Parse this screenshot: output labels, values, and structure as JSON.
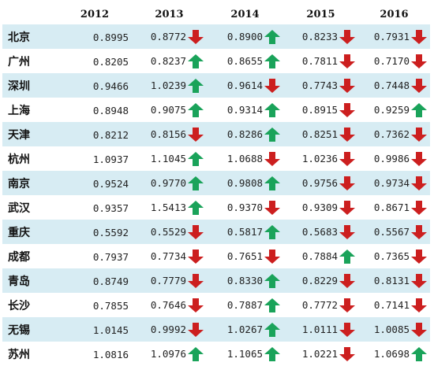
{
  "table": {
    "columns": [
      "",
      "2012",
      "2013",
      "2014",
      "2015",
      "2016"
    ],
    "rows": [
      {
        "city": "北京",
        "v": [
          "0.8995",
          "0.8772",
          "0.8900",
          "0.8233",
          "0.7931"
        ],
        "t": [
          null,
          "down",
          "up",
          "down",
          "down"
        ]
      },
      {
        "city": "广州",
        "v": [
          "0.8205",
          "0.8237",
          "0.8655",
          "0.7811",
          "0.7170"
        ],
        "t": [
          null,
          "up",
          "up",
          "down",
          "down"
        ]
      },
      {
        "city": "深圳",
        "v": [
          "0.9466",
          "1.0239",
          "0.9614",
          "0.7743",
          "0.7448"
        ],
        "t": [
          null,
          "up",
          "down",
          "down",
          "down"
        ]
      },
      {
        "city": "上海",
        "v": [
          "0.8948",
          "0.9075",
          "0.9314",
          "0.8915",
          "0.9259"
        ],
        "t": [
          null,
          "up",
          "up",
          "down",
          "up"
        ]
      },
      {
        "city": "天津",
        "v": [
          "0.8212",
          "0.8156",
          "0.8286",
          "0.8251",
          "0.7362"
        ],
        "t": [
          null,
          "down",
          "up",
          "down",
          "down"
        ]
      },
      {
        "city": "杭州",
        "v": [
          "1.0937",
          "1.1045",
          "1.0688",
          "1.0236",
          "0.9986"
        ],
        "t": [
          null,
          "up",
          "down",
          "down",
          "down"
        ]
      },
      {
        "city": "南京",
        "v": [
          "0.9524",
          "0.9770",
          "0.9808",
          "0.9756",
          "0.9734"
        ],
        "t": [
          null,
          "up",
          "up",
          "down",
          "down"
        ]
      },
      {
        "city": "武汉",
        "v": [
          "0.9357",
          "1.5413",
          "0.9370",
          "0.9309",
          "0.8671"
        ],
        "t": [
          null,
          "up",
          "down",
          "down",
          "down"
        ]
      },
      {
        "city": "重庆",
        "v": [
          "0.5592",
          "0.5529",
          "0.5817",
          "0.5683",
          "0.5567"
        ],
        "t": [
          null,
          "down",
          "up",
          "down",
          "down"
        ]
      },
      {
        "city": "成都",
        "v": [
          "0.7937",
          "0.7734",
          "0.7651",
          "0.7884",
          "0.7365"
        ],
        "t": [
          null,
          "down",
          "down",
          "up",
          "down"
        ]
      },
      {
        "city": "青岛",
        "v": [
          "0.8749",
          "0.7779",
          "0.8330",
          "0.8229",
          "0.8131"
        ],
        "t": [
          null,
          "down",
          "up",
          "down",
          "down"
        ]
      },
      {
        "city": "长沙",
        "v": [
          "0.7855",
          "0.7646",
          "0.7887",
          "0.7772",
          "0.7141"
        ],
        "t": [
          null,
          "down",
          "up",
          "down",
          "down"
        ]
      },
      {
        "city": "无锡",
        "v": [
          "1.0145",
          "0.9992",
          "1.0267",
          "1.0111",
          "1.0085"
        ],
        "t": [
          null,
          "down",
          "up",
          "down",
          "down"
        ]
      },
      {
        "city": "苏州",
        "v": [
          "1.0816",
          "1.0976",
          "1.1065",
          "1.0221",
          "1.0698"
        ],
        "t": [
          null,
          "up",
          "up",
          "down",
          "up"
        ]
      }
    ]
  },
  "colors": {
    "up": "#1aa35a",
    "down": "#cc1f1f",
    "band": "#d7ecf3"
  },
  "icons": {
    "up": "green-up-arrow-icon",
    "down": "red-down-arrow-icon"
  }
}
